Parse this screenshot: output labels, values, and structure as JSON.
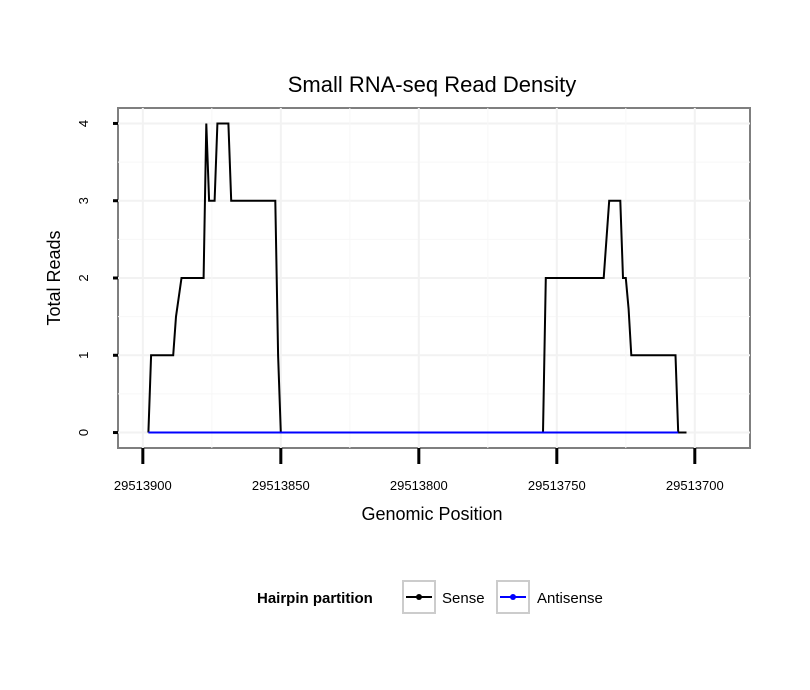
{
  "chart_data": {
    "type": "line",
    "title": "Small RNA-seq Read Density",
    "xlabel": "Genomic Position",
    "ylabel": "Total Reads",
    "x_reversed": true,
    "xlim": [
      29513909,
      29513680
    ],
    "ylim": [
      -0.2,
      4.2
    ],
    "x_ticks": [
      29513900,
      29513850,
      29513800,
      29513750,
      29513700
    ],
    "x_tick_labels": [
      "29513900",
      "29513850",
      "29513800",
      "29513750",
      "29513700"
    ],
    "y_ticks": [
      0,
      1,
      2,
      3,
      4
    ],
    "y_tick_labels": [
      "0",
      "1",
      "2",
      "3",
      "4"
    ],
    "grid": true,
    "legend": {
      "title": "Hairpin partition",
      "position": "bottom",
      "entries": [
        "Sense",
        "Antisense"
      ]
    },
    "series": [
      {
        "name": "Sense",
        "color": "#000000",
        "x": [
          29513898,
          29513897,
          29513889,
          29513888,
          29513886,
          29513878,
          29513877,
          29513876,
          29513874,
          29513873,
          29513869,
          29513868,
          29513864,
          29513863,
          29513861,
          29513860,
          29513852,
          29513851,
          29513850,
          29513800,
          29513755,
          29513754,
          29513734,
          29513733,
          29513731,
          29513730,
          29513727,
          29513726,
          29513725,
          29513724,
          29513723,
          29513721,
          29513720,
          29513707,
          29513706,
          29513705,
          29513703
        ],
        "y": [
          0,
          1,
          1,
          1.5,
          2,
          2,
          4,
          3,
          3,
          4,
          4,
          3,
          3,
          3,
          3,
          3,
          3,
          1,
          0,
          0,
          0,
          2,
          2,
          2,
          3,
          3,
          3,
          2,
          2,
          1.6,
          1,
          1,
          1,
          1,
          0,
          0,
          0
        ]
      },
      {
        "name": "Antisense",
        "color": "#0000ff",
        "x": [
          29513898,
          29513851,
          29513755,
          29513706
        ],
        "y": [
          0,
          0,
          0,
          0
        ]
      }
    ]
  }
}
